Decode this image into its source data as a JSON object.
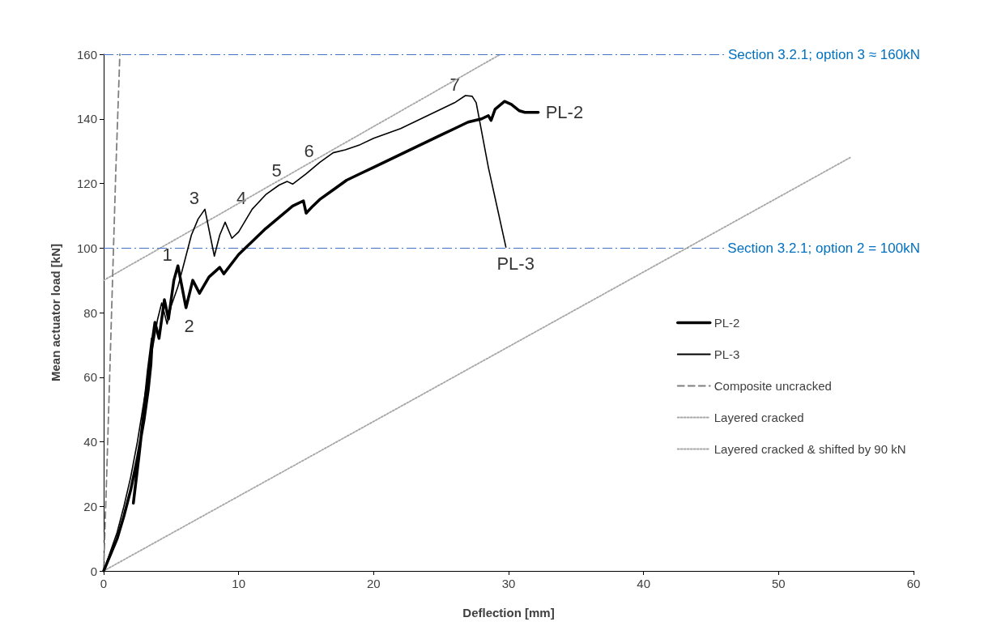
{
  "chart_data": {
    "type": "line",
    "xlabel": "Deflection [mm]",
    "ylabel": "Mean actuator load [kN]",
    "xlim": [
      0,
      60
    ],
    "xticks": [
      0,
      10,
      20,
      30,
      40,
      50,
      60
    ],
    "ylim": [
      0,
      160
    ],
    "yticks": [
      0,
      20,
      40,
      60,
      80,
      100,
      120,
      140,
      160
    ],
    "grid": false,
    "legend": "right",
    "marker": "none",
    "series": [
      {
        "name": "PL-2",
        "color": "#000000",
        "line_style": "solid",
        "x": [
          0,
          0.5,
          1,
          1.5,
          2,
          2.5,
          3,
          3.3,
          3.5,
          3.6,
          3.3,
          3,
          2.6,
          2.2,
          2.5,
          3,
          3.4,
          3.8,
          4.1,
          4.5,
          4.8,
          5.2,
          5.5,
          6.1,
          6.6,
          7.1,
          7.8,
          8.6,
          8.9,
          10,
          11,
          12,
          13,
          14,
          14.8,
          15,
          15.5,
          16,
          17,
          18,
          19,
          20,
          21,
          22,
          23,
          24,
          25,
          26,
          27,
          28,
          28.5,
          28.7,
          29,
          29.7,
          30.2,
          30.8,
          31.2,
          32.2
        ],
        "values": [
          0,
          5,
          10,
          17,
          25,
          35,
          47,
          56,
          64,
          72,
          62,
          50,
          35,
          21,
          32,
          50,
          65,
          77,
          72,
          84,
          78,
          90,
          94.5,
          81.5,
          90,
          86,
          91,
          94,
          92,
          98,
          102,
          106,
          109.5,
          113,
          114.6,
          110.8,
          113,
          115,
          118,
          121,
          123,
          125,
          127,
          129,
          131,
          133,
          135,
          137,
          139,
          140,
          141,
          139.5,
          143,
          145.4,
          144.5,
          142.5,
          142,
          142
        ]
      },
      {
        "name": "PL-3",
        "color": "#000000",
        "line_style": "solid",
        "x": [
          0,
          0.5,
          1,
          1.5,
          2,
          2.5,
          3,
          3.5,
          4,
          4.3,
          4.7,
          5,
          5.5,
          6,
          6.5,
          7,
          7.5,
          8.2,
          8.6,
          9,
          9.5,
          10,
          11,
          12,
          13,
          13.6,
          14,
          15,
          16,
          17,
          17.9,
          19,
          20,
          21,
          22,
          23,
          24,
          25,
          26,
          26.8,
          27.3,
          27.6,
          28.5,
          29.8
        ],
        "values": [
          0,
          6,
          12,
          20,
          29,
          40,
          53,
          66,
          78,
          83,
          76.5,
          82,
          88,
          96,
          104,
          109,
          112,
          97.5,
          104,
          108,
          103,
          105,
          112,
          116.5,
          119.5,
          120.6,
          119.8,
          123,
          126.5,
          129.5,
          130.4,
          132,
          134,
          135.5,
          137,
          139,
          141,
          143,
          145,
          147.2,
          147,
          145,
          125,
          100.3
        ]
      },
      {
        "name": "Composite uncracked",
        "color": "#7f7f7f",
        "line_style": "dashed",
        "x": [
          0,
          0.3,
          0.6,
          0.9,
          1.2
        ],
        "values": [
          0,
          40,
          82,
          124,
          160
        ]
      },
      {
        "name": "Layered cracked",
        "color": "#a6a6a6",
        "line_style": "dotted",
        "x": [
          0,
          55.3
        ],
        "values": [
          0,
          128
        ]
      },
      {
        "name": "Layered cracked & shifted by 90 kN",
        "color": "#a6a6a6",
        "line_style": "dotted",
        "x": [
          0,
          29.4
        ],
        "values": [
          90,
          160
        ]
      }
    ],
    "ref_lines": [
      {
        "axis": "y",
        "value": 100,
        "label": "Section 3.2.1; option 2 = 100kN",
        "color": "#4472c4",
        "line_style": "dashdot"
      },
      {
        "axis": "y",
        "value": 160,
        "label": "Section 3.2.1; option 3 ≈ 160kN",
        "color": "#4472c4",
        "line_style": "dashdot"
      }
    ],
    "annotations": [
      {
        "text": "1",
        "x": 5.5,
        "y": 94.5
      },
      {
        "text": "2",
        "x": 6.1,
        "y": 81.5
      },
      {
        "text": "3",
        "x": 7.5,
        "y": 112
      },
      {
        "text": "4",
        "x": 11,
        "y": 112
      },
      {
        "text": "5",
        "x": 13.6,
        "y": 120.6
      },
      {
        "text": "6",
        "x": 16,
        "y": 126.5
      },
      {
        "text": "7",
        "x": 26.8,
        "y": 147.2
      },
      {
        "text": "PL-2",
        "x": 32.2,
        "y": 142
      },
      {
        "text": "PL-3",
        "x": 29.8,
        "y": 100.3
      }
    ]
  }
}
